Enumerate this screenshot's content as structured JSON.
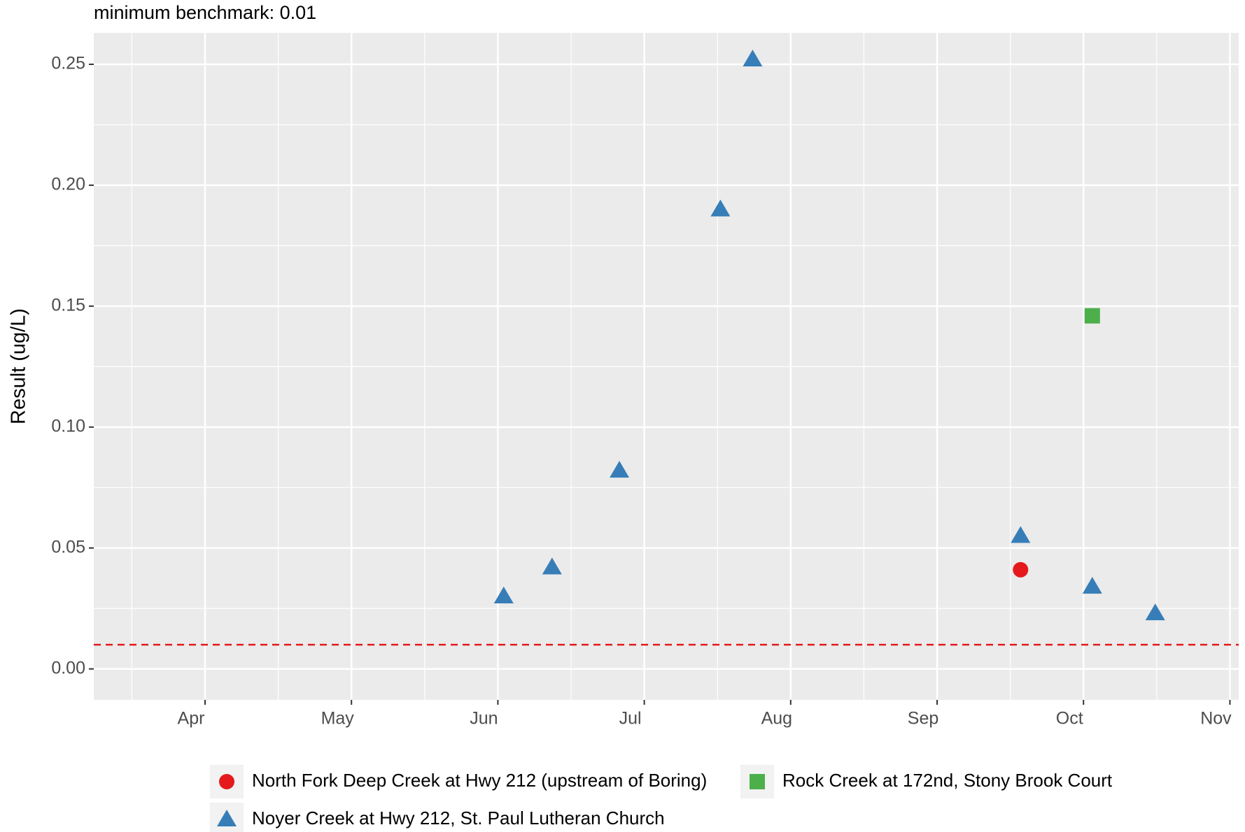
{
  "chart_data": {
    "type": "scatter",
    "title": "minimum benchmark: 0.01",
    "ylabel": "Result (ug/L)",
    "xlim": [
      3.24,
      11.06
    ],
    "xticks": [
      {
        "value": 4,
        "label": "Apr"
      },
      {
        "value": 5,
        "label": "May"
      },
      {
        "value": 6,
        "label": "Jun"
      },
      {
        "value": 7,
        "label": "Jul"
      },
      {
        "value": 8,
        "label": "Aug"
      },
      {
        "value": 9,
        "label": "Sep"
      },
      {
        "value": 10,
        "label": "Oct"
      },
      {
        "value": 11,
        "label": "Nov"
      }
    ],
    "ylim": [
      -0.0128,
      0.263
    ],
    "yticks": [
      {
        "value": 0,
        "label": "0.00"
      },
      {
        "value": 0.05,
        "label": "0.05"
      },
      {
        "value": 0.1,
        "label": "0.10"
      },
      {
        "value": 0.15,
        "label": "0.15"
      },
      {
        "value": 0.2,
        "label": "0.20"
      },
      {
        "value": 0.25,
        "label": "0.25"
      }
    ],
    "grid": true,
    "benchmark": 0.01,
    "benchmark_color": "#e41a1c",
    "legend": "bottom",
    "series": [
      {
        "name": "North Fork Deep Creek at Hwy 212 (upstream of Boring)",
        "color": "#e41a1c",
        "marker": "circle",
        "x": [
          9.57
        ],
        "values": [
          0.041
        ]
      },
      {
        "name": "Noyer Creek at Hwy 212, St. Paul Lutheran Church",
        "color": "#377eb8",
        "marker": "triangle",
        "x": [
          6.04,
          6.37,
          6.83,
          7.52,
          7.74,
          9.57,
          10.06,
          10.49
        ],
        "values": [
          0.03,
          0.042,
          0.082,
          0.19,
          0.252,
          0.055,
          0.034,
          0.023
        ]
      },
      {
        "name": "Rock Creek at 172nd, Stony Brook Court",
        "color": "#4daf4a",
        "marker": "square",
        "x": [
          10.06
        ],
        "values": [
          0.146
        ]
      }
    ]
  }
}
